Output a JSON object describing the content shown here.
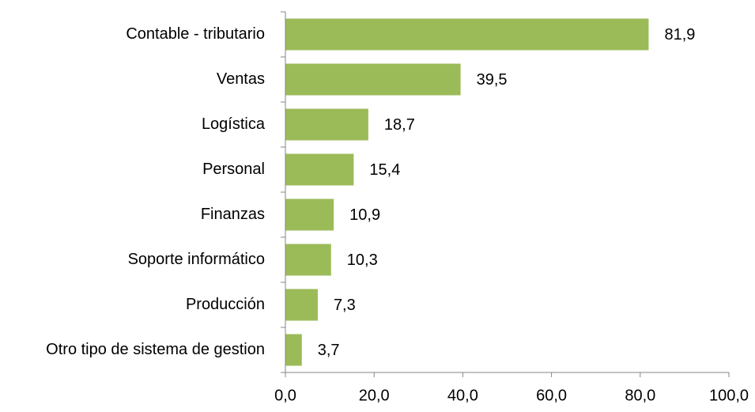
{
  "chart_data": {
    "type": "bar",
    "orientation": "horizontal",
    "categories": [
      "Contable - tributario",
      "Ventas",
      "Logística",
      "Personal",
      "Finanzas",
      "Soporte informático",
      "Producción",
      "Otro tipo de sistema de gestion"
    ],
    "values": [
      81.9,
      39.5,
      18.7,
      15.4,
      10.9,
      10.3,
      7.3,
      3.7
    ],
    "value_labels": [
      "81,9",
      "39,5",
      "18,7",
      "15,4",
      "10,9",
      "10,3",
      "7,3",
      "3,7"
    ],
    "color": "#9bbb59",
    "xlim": [
      0,
      100
    ],
    "xticks": [
      {
        "value": 0,
        "label": "0,0"
      },
      {
        "value": 20,
        "label": "20,0"
      },
      {
        "value": 40,
        "label": "40,0"
      },
      {
        "value": 60,
        "label": "60,0"
      },
      {
        "value": 80,
        "label": "80,0"
      },
      {
        "value": 100,
        "label": "100,0"
      }
    ]
  }
}
